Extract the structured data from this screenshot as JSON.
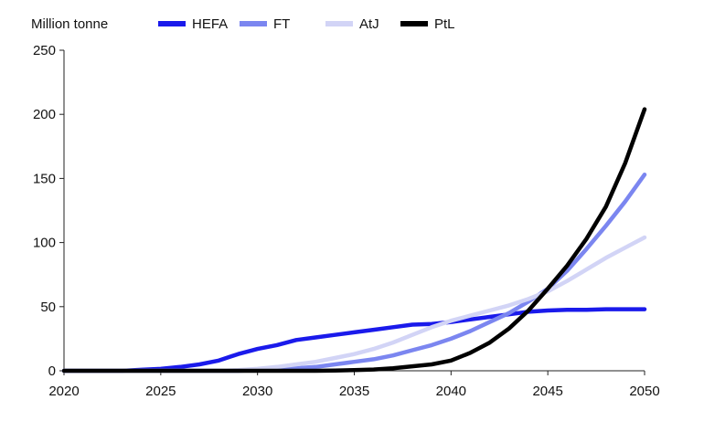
{
  "chart_data": {
    "type": "line",
    "ylabel": "Million tonne",
    "ylim": [
      0,
      250
    ],
    "yticks": [
      0,
      50,
      100,
      150,
      200,
      250
    ],
    "xlim": [
      2020,
      2050
    ],
    "xticks": [
      2020,
      2025,
      2030,
      2035,
      2040,
      2045,
      2050
    ],
    "grid": false,
    "legend_position": "top",
    "x": [
      2020,
      2021,
      2022,
      2023,
      2024,
      2025,
      2026,
      2027,
      2028,
      2029,
      2030,
      2031,
      2032,
      2033,
      2034,
      2035,
      2036,
      2037,
      2038,
      2039,
      2040,
      2041,
      2042,
      2043,
      2044,
      2045,
      2046,
      2047,
      2048,
      2049,
      2050
    ],
    "series": [
      {
        "name": "HEFA",
        "color": "#1a1aeb",
        "values": [
          0,
          0,
          0,
          0,
          0.8,
          1.5,
          3,
          5,
          8,
          13,
          17,
          20,
          24,
          26,
          28,
          30,
          32,
          34,
          36,
          36.5,
          38,
          40,
          42,
          44,
          46,
          47,
          47.5,
          47.5,
          48,
          48,
          48
        ]
      },
      {
        "name": "FT",
        "color": "#7b86f0",
        "values": [
          0,
          0,
          0,
          0,
          0,
          0,
          0,
          0,
          0,
          0,
          0.5,
          1,
          2,
          3,
          5,
          7,
          9,
          12,
          16,
          20,
          25,
          31,
          38,
          45,
          54,
          64,
          78,
          95,
          113,
          132,
          153
        ]
      },
      {
        "name": "AtJ",
        "color": "#d2d4f6",
        "values": [
          0,
          0,
          0,
          0,
          0,
          0,
          0,
          0,
          0,
          0.5,
          1.5,
          3,
          5,
          7,
          10,
          13,
          17,
          22,
          28,
          34,
          39,
          43,
          47,
          51,
          56,
          62,
          70,
          79,
          88,
          96,
          104
        ]
      },
      {
        "name": "PtL",
        "color": "#000000",
        "values": [
          0,
          0,
          0,
          0,
          0,
          0,
          0,
          0,
          0,
          0,
          0,
          0,
          0,
          0,
          0.2,
          0.5,
          1,
          2,
          3.5,
          5,
          8,
          14,
          22,
          33,
          47,
          64,
          82,
          103,
          128,
          162,
          204
        ]
      }
    ]
  }
}
